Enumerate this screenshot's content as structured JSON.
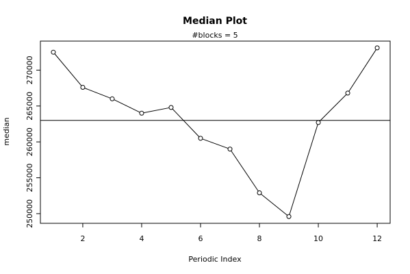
{
  "chart_data": {
    "type": "line",
    "title": "Median Plot",
    "subtitle": "#blocks =  5",
    "xlabel": "Periodic Index",
    "ylabel": "median",
    "x": [
      1,
      2,
      3,
      4,
      5,
      6,
      7,
      8,
      9,
      10,
      11,
      12
    ],
    "series": [
      {
        "values": [
          272500,
          267600,
          266000,
          264000,
          264800,
          260500,
          259000,
          252900,
          249600,
          262700,
          266800,
          273100
        ]
      }
    ],
    "reference_line": 263000,
    "x_ticks": [
      2,
      4,
      6,
      8,
      10,
      12
    ],
    "y_ticks": [
      250000,
      255000,
      260000,
      265000,
      270000
    ],
    "xlim": [
      0.56,
      12.44
    ],
    "ylim": [
      248654,
      274046
    ],
    "grid": false,
    "legend": "none",
    "colors": {
      "line": "#000000",
      "marker_fill": "#ffffff",
      "background": "#ffffff"
    }
  }
}
